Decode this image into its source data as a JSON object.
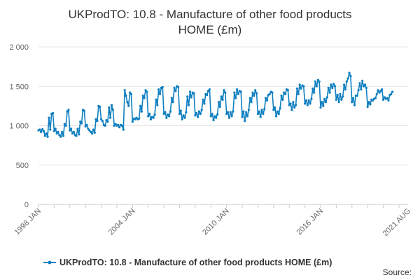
{
  "chart_data": {
    "type": "line",
    "title_lines": [
      "UKProdTO: 10.8 - Manufacture of other food products",
      "HOME (£m)"
    ],
    "xlabel": "",
    "ylabel": "",
    "x_ticks": [
      "1998 JAN",
      "2004 JAN",
      "2010 JAN",
      "2016 JAN",
      "2021 AUG"
    ],
    "y_ticks": [
      "0",
      "500",
      "1 000",
      "1 500",
      "2 000"
    ],
    "ylim": [
      0,
      2000
    ],
    "x_start": "1998-01",
    "x_end": "2021-08",
    "grid": true,
    "legend_position": "bottom",
    "series": [
      {
        "name": "UKProdTO: 10.8 - Manufacture of other food products HOME (£m)",
        "color": "#0f7fc0",
        "values": [
          940,
          950,
          920,
          955,
          930,
          870,
          900,
          860,
          1100,
          950,
          1150,
          1160,
          930,
          960,
          900,
          920,
          880,
          860,
          920,
          870,
          1020,
          1000,
          1180,
          1200,
          940,
          960,
          900,
          920,
          880,
          870,
          960,
          890,
          1050,
          1030,
          1200,
          1190,
          990,
          1010,
          960,
          940,
          920,
          900,
          950,
          910,
          1080,
          1060,
          1250,
          1240,
          1080,
          1060,
          1010,
          1000,
          1070,
          1050,
          1230,
          1100,
          1260,
          1200,
          1000,
          1020,
          1000,
          1010,
          980,
          1010,
          1000,
          950,
          1450,
          1380,
          1300,
          1250,
          1420,
          1400,
          1050,
          1090,
          1080,
          1100,
          1080,
          1090,
          1250,
          1180,
          1380,
          1350,
          1450,
          1430,
          1120,
          1150,
          1080,
          1110,
          1100,
          1140,
          1330,
          1260,
          1460,
          1400,
          1480,
          1490,
          1150,
          1170,
          1100,
          1140,
          1120,
          1180,
          1350,
          1300,
          1480,
          1440,
          1500,
          1490,
          1150,
          1190,
          1080,
          1130,
          1100,
          1170,
          1370,
          1260,
          1430,
          1360,
          1420,
          1410,
          1130,
          1160,
          1110,
          1180,
          1150,
          1200,
          1330,
          1280,
          1400,
          1390,
          1440,
          1460,
          1120,
          1150,
          1070,
          1120,
          1100,
          1140,
          1300,
          1240,
          1370,
          1330,
          1450,
          1420,
          1150,
          1170,
          1100,
          1170,
          1120,
          1180,
          1420,
          1350,
          1460,
          1400,
          1440,
          1430,
          1110,
          1180,
          1060,
          1170,
          1120,
          1200,
          1350,
          1300,
          1420,
          1380,
          1450,
          1410,
          1150,
          1180,
          1110,
          1200,
          1150,
          1210,
          1350,
          1320,
          1390,
          1400,
          1430,
          1420,
          1200,
          1230,
          1120,
          1180,
          1150,
          1220,
          1380,
          1330,
          1420,
          1400,
          1460,
          1450,
          1260,
          1280,
          1200,
          1300,
          1230,
          1260,
          1470,
          1400,
          1520,
          1470,
          1510,
          1500,
          1280,
          1320,
          1260,
          1320,
          1280,
          1340,
          1470,
          1420,
          1560,
          1500,
          1580,
          1560,
          1230,
          1300,
          1250,
          1340,
          1300,
          1360,
          1480,
          1420,
          1520,
          1480,
          1530,
          1500,
          1330,
          1390,
          1300,
          1400,
          1330,
          1370,
          1520,
          1460,
          1560,
          1600,
          1670,
          1630,
          1300,
          1350,
          1260,
          1380,
          1380,
          1450,
          1540,
          1460,
          1570,
          1500,
          1520,
          1480,
          1240,
          1300,
          1270,
          1330,
          1320,
          1340,
          1350,
          1400,
          1450,
          1420,
          1440,
          1460,
          1330,
          1360,
          1340,
          1350,
          1320,
          1390,
          1400,
          1430
        ]
      }
    ]
  },
  "legend": {
    "label": "UKProdTO: 10.8 - Manufacture of other food products HOME (£m)"
  },
  "source": {
    "label": "Source:"
  }
}
